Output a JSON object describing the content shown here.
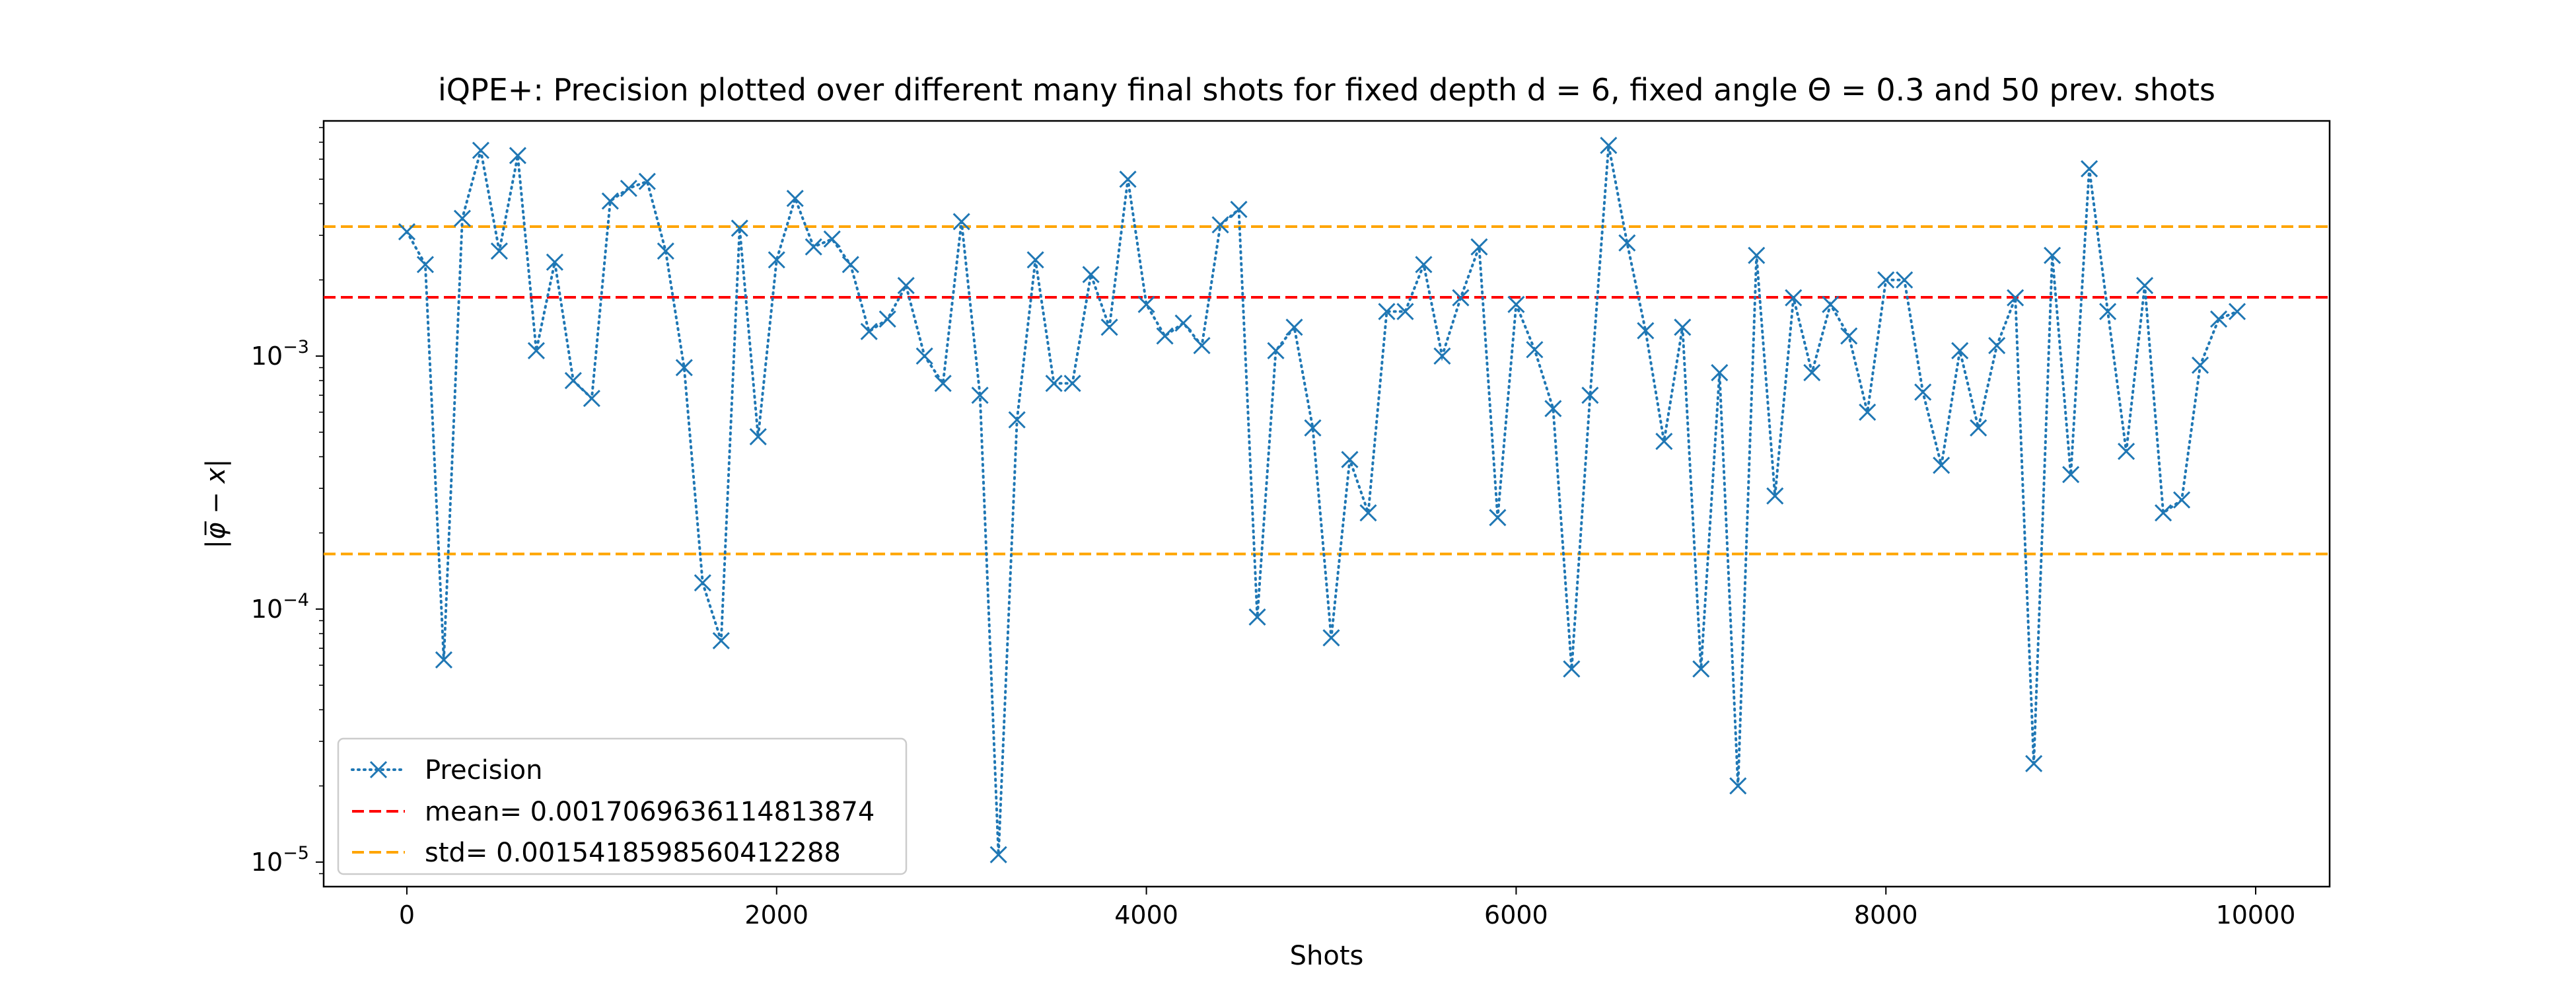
{
  "chart_data": {
    "type": "line",
    "title": "iQPE+: Precision plotted over different many final shots for fixed depth d = 6, fixed angle Θ = 0.3 and 50 prev. shots",
    "xlabel": "Shots",
    "ylabel": "|φ̅ − x|",
    "xlim": [
      -450,
      10400
    ],
    "ylim": [
      8e-06,
      0.0085
    ],
    "yscale": "log",
    "grid": false,
    "legend_position": "lower-left",
    "x_ticks": [
      0,
      2000,
      4000,
      6000,
      8000,
      10000
    ],
    "x_tick_labels": [
      "0",
      "2000",
      "4000",
      "6000",
      "8000",
      "10000"
    ],
    "y_ticks": [
      1e-05,
      0.0001,
      0.001
    ],
    "y_tick_labels": [
      {
        "base": "10",
        "exp": "−5"
      },
      {
        "base": "10",
        "exp": "−4"
      },
      {
        "base": "10",
        "exp": "−3"
      }
    ],
    "series": [
      {
        "name": "Precision",
        "style": "dotted",
        "marker": "x",
        "color": "#1f77b4",
        "x": [
          0,
          100,
          200,
          300,
          400,
          500,
          600,
          700,
          800,
          900,
          1000,
          1100,
          1200,
          1300,
          1400,
          1500,
          1600,
          1700,
          1800,
          1900,
          2000,
          2100,
          2200,
          2300,
          2400,
          2500,
          2600,
          2700,
          2800,
          2900,
          3000,
          3100,
          3200,
          3300,
          3400,
          3500,
          3600,
          3700,
          3800,
          3900,
          4000,
          4100,
          4200,
          4300,
          4400,
          4500,
          4600,
          4700,
          4800,
          4900,
          5000,
          5100,
          5200,
          5300,
          5400,
          5500,
          5600,
          5700,
          5800,
          5900,
          6000,
          6100,
          6200,
          6300,
          6400,
          6500,
          6600,
          6700,
          6800,
          6900,
          7000,
          7100,
          7200,
          7300,
          7400,
          7500,
          7600,
          7700,
          7800,
          7900,
          8000,
          8100,
          8200,
          8300,
          8400,
          8500,
          8600,
          8700,
          8800,
          8900,
          9000,
          9100,
          9200,
          9300,
          9400,
          9500,
          9600,
          9700,
          9800,
          9900
        ],
        "y": [
          0.0031,
          0.0023,
          6.3e-05,
          0.0035,
          0.0065,
          0.0026,
          0.0062,
          0.00105,
          0.00235,
          0.0008,
          0.00068,
          0.0041,
          0.0046,
          0.0049,
          0.0026,
          0.0009,
          0.000127,
          7.5e-05,
          0.0032,
          0.00048,
          0.0024,
          0.0042,
          0.0027,
          0.0029,
          0.0023,
          0.00125,
          0.0014,
          0.0019,
          0.001,
          0.00078,
          0.0034,
          0.0007,
          1.07e-05,
          0.00056,
          0.0024,
          0.00078,
          0.00078,
          0.0021,
          0.0013,
          0.005,
          0.0016,
          0.0012,
          0.00135,
          0.0011,
          0.0033,
          0.0038,
          9.3e-05,
          0.00105,
          0.0013,
          0.00052,
          7.7e-05,
          0.00039,
          0.00024,
          0.0015,
          0.0015,
          0.0023,
          0.001,
          0.0017,
          0.0027,
          0.00023,
          0.0016,
          0.00106,
          0.00062,
          5.8e-05,
          0.0007,
          0.0068,
          0.0028,
          0.00126,
          0.00046,
          0.0013,
          5.8e-05,
          0.00086,
          2e-05,
          0.0025,
          0.00028,
          0.0017,
          0.00086,
          0.0016,
          0.0012,
          0.0006,
          0.002,
          0.002,
          0.00072,
          0.00037,
          0.00105,
          0.00052,
          0.0011,
          0.0017,
          2.45e-05,
          0.0025,
          0.00034,
          0.0055,
          0.0015,
          0.00042,
          0.0019,
          0.00024,
          0.00027,
          0.00092,
          0.0014,
          0.0015
        ]
      },
      {
        "name": "mean= 0.0017069636114813874",
        "style": "dashed",
        "color": "#ff0000",
        "y_const": 0.0017069636114813874
      },
      {
        "name": "std= 0.0015418598560412288",
        "style": "dashed",
        "color": "#ffa500",
        "y_consts": [
          0.003248823467522616,
          0.0001651037554401586
        ]
      }
    ]
  }
}
